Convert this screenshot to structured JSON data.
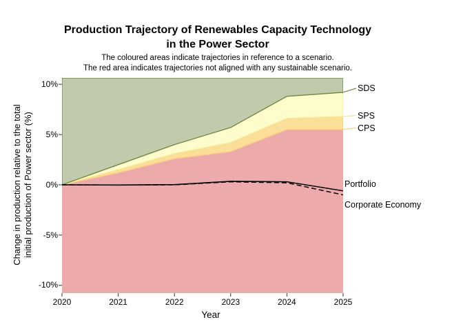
{
  "title": {
    "line1": "Production Trajectory of Renewables Capacity Technology",
    "line2": "in the Power Sector"
  },
  "subtitle": {
    "line1": "The coloured areas indicate trajectories in reference to a scenario.",
    "line2": "The red area indicates trajectories not aligned with any sustainable scenario."
  },
  "axes": {
    "x_label": "Year",
    "y_label_line1": "Change in production relative to the total",
    "y_label_line2": "initial production of Power sector (%)",
    "x_ticks": [
      "2020",
      "2021",
      "2022",
      "2023",
      "2024",
      "2025"
    ],
    "y_ticks": [
      "10%",
      "5%",
      "0%",
      "-5%",
      "-10%"
    ]
  },
  "annotations": {
    "sds": "SDS",
    "sps": "SPS",
    "cps": "CPS",
    "portfolio": "Portfolio",
    "corporate_economy": "Corporate Economy"
  },
  "colors": {
    "sds_fill": "#c1caac",
    "sds_line": "#6f8a4e",
    "sps_fill": "#fdfcca",
    "sps_line": "#f1ea9c",
    "cps_fill": "#fbdf99",
    "cps_line": "#f6d178",
    "red_fill": "#ecabaa",
    "series_line": "#000000",
    "tick_color": "#333333"
  },
  "chart_data": {
    "type": "area",
    "title": "Production Trajectory of Renewables Capacity Technology in the Power Sector",
    "xlabel": "Year",
    "ylabel": "Change in production relative to the total initial production of Power sector (%)",
    "x": [
      2020,
      2021,
      2022,
      2023,
      2024,
      2025
    ],
    "xlim": [
      2020,
      2025
    ],
    "ylim_percent": [
      -10.8,
      10.6
    ],
    "yticks_percent": [
      10,
      5,
      0,
      -5,
      -10
    ],
    "grid": false,
    "legend_position": "right-outside",
    "series": [
      {
        "name": "SDS",
        "type": "area-boundary",
        "values_percent": [
          0,
          2.0,
          4.0,
          5.7,
          8.8,
          9.2
        ]
      },
      {
        "name": "SPS",
        "type": "area-boundary",
        "values_percent": [
          0,
          1.5,
          3.1,
          4.2,
          6.6,
          6.8
        ]
      },
      {
        "name": "CPS",
        "type": "area-boundary",
        "values_percent": [
          0,
          1.2,
          2.6,
          3.3,
          5.5,
          5.5
        ]
      },
      {
        "name": "Portfolio",
        "type": "line-solid",
        "values_percent": [
          0,
          -0.02,
          0.02,
          0.35,
          0.3,
          -0.6
        ]
      },
      {
        "name": "Corporate Economy",
        "type": "line-dashed",
        "values_percent": [
          0,
          -0.02,
          0.0,
          0.3,
          0.2,
          -1.0
        ]
      }
    ],
    "regions": [
      {
        "name": "SDS region",
        "fill": "#c1caac",
        "extent": "above SDS boundary up to panel top"
      },
      {
        "name": "SPS region",
        "fill": "#fdfcca",
        "extent": "between SPS and SDS boundaries"
      },
      {
        "name": "CPS region",
        "fill": "#fbdf99",
        "extent": "between CPS and SPS boundaries"
      },
      {
        "name": "not aligned region",
        "fill": "#ecabaa",
        "extent": "below CPS boundary to panel bottom"
      }
    ]
  }
}
